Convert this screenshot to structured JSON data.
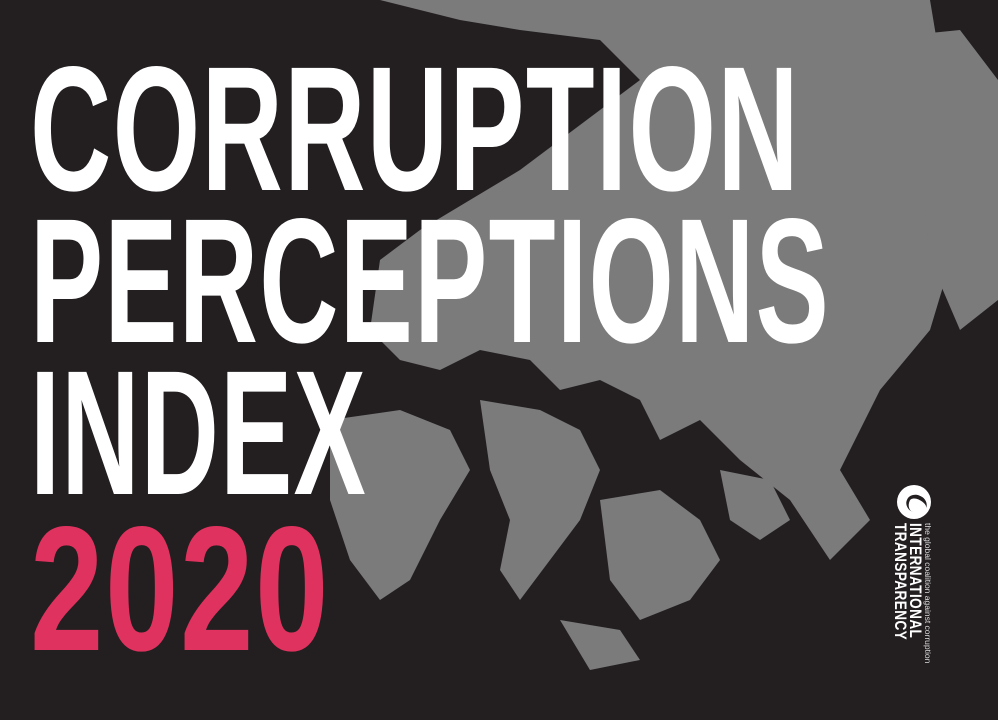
{
  "title": {
    "line1": "CORRUPTION",
    "line2": "PERCEPTIONS",
    "line3": "INDEX",
    "year": "2020"
  },
  "logo": {
    "name_line1": "TRANSPARENCY",
    "name_line2": "INTERNATIONAL",
    "tagline": "the global coalition against corruption",
    "icon": "globe-icon"
  },
  "colors": {
    "background": "#231f20",
    "map": "#7b7b7b",
    "title": "#ffffff",
    "year": "#e0325f"
  }
}
